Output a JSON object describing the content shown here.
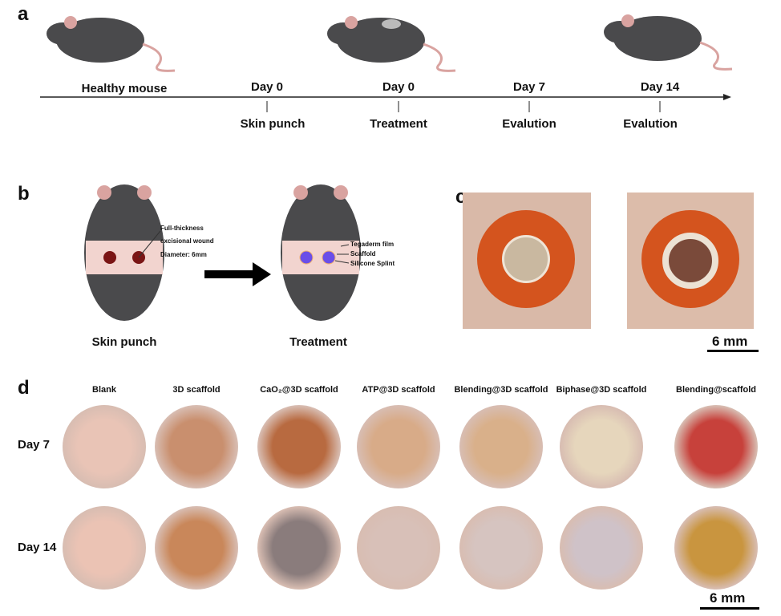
{
  "panels": {
    "a": "a",
    "b": "b",
    "c": "c",
    "d": "d"
  },
  "timeline": {
    "above": [
      "Healthy mouse",
      "Day 0",
      "Day 0",
      "Day 7",
      "Day 14"
    ],
    "below": [
      "Skin punch",
      "Treatment",
      "Evalution",
      "Evalution"
    ]
  },
  "panel_b": {
    "left_caption": "Skin punch",
    "right_caption": "Treatment",
    "left_notes": [
      "Full-thickness",
      "excisional wound",
      "Diameter: 6mm"
    ],
    "right_notes": [
      "Tegaderm film",
      "Scaffold",
      "Silicone Splint"
    ]
  },
  "panel_c": {
    "scale_bar": "6 mm"
  },
  "panel_d": {
    "columns": [
      "Blank",
      "3D scaffold",
      "CaO₂@3D scaffold",
      "ATP@3D scaffold",
      "Blending@3D scaffold",
      "Biphase@3D scaffold",
      "Blending@scaffold"
    ],
    "rows": [
      "Day 7",
      "Day 14"
    ],
    "scale_bar": "6 mm",
    "colors": {
      "day7": [
        "#e9c4b6",
        "#c98f6e",
        "#b86a40",
        "#d8ab88",
        "#d9b08a",
        "#e6d6bc",
        "#c7413b"
      ],
      "day14": [
        "#ebc3b4",
        "#c9875a",
        "#8a7c7c",
        "#d8c0b8",
        "#d6c4c0",
        "#cfc2c8",
        "#c9953f"
      ]
    }
  }
}
